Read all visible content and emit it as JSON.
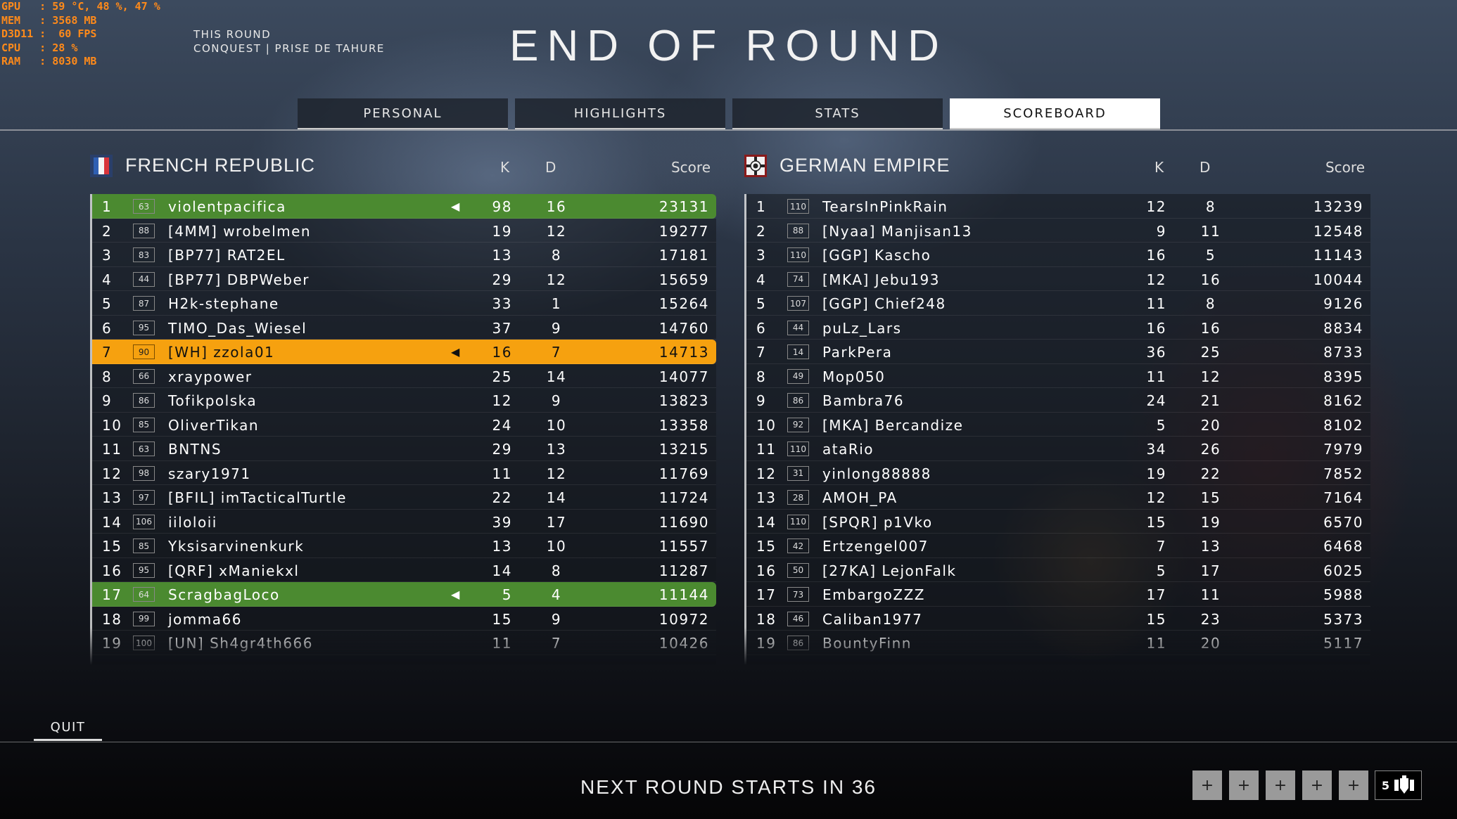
{
  "osd": {
    "lines": [
      "GPU   : 59 °C, 48 %, 47 %",
      "MEM   : 3568 MB",
      "D3D11 :  60 FPS",
      "CPU   : 28 %",
      "RAM   : 8030 MB"
    ]
  },
  "mode": {
    "round_label": "THIS ROUND",
    "subtitle": "CONQUEST | PRISE DE TAHURE"
  },
  "title": "END OF ROUND",
  "tabs": [
    {
      "label": "PERSONAL"
    },
    {
      "label": "HIGHLIGHTS"
    },
    {
      "label": "STATS"
    },
    {
      "label": "SCOREBOARD",
      "active": true
    }
  ],
  "columns": {
    "k": "K",
    "d": "D",
    "score": "Score"
  },
  "colors": {
    "highlight_green": "#4b8a30",
    "highlight_orange": "#f6a10f"
  },
  "teams": [
    {
      "name": "FRENCH REPUBLIC",
      "flag": "french-flag",
      "players": [
        {
          "rank": "1",
          "level": "63",
          "name": "violentpacifica",
          "k": "98",
          "d": "16",
          "score": "23131",
          "highlight": "green",
          "speaker": true
        },
        {
          "rank": "2",
          "level": "88",
          "name": "[4MM] wrobelmen",
          "k": "19",
          "d": "12",
          "score": "19277"
        },
        {
          "rank": "3",
          "level": "83",
          "name": "[BP77] RAT2EL",
          "k": "13",
          "d": "8",
          "score": "17181"
        },
        {
          "rank": "4",
          "level": "44",
          "name": "[BP77] DBPWeber",
          "k": "29",
          "d": "12",
          "score": "15659"
        },
        {
          "rank": "5",
          "level": "87",
          "name": "H2k-stephane",
          "k": "33",
          "d": "1",
          "score": "15264"
        },
        {
          "rank": "6",
          "level": "95",
          "name": "TIMO_Das_Wiesel",
          "k": "37",
          "d": "9",
          "score": "14760"
        },
        {
          "rank": "7",
          "level": "90",
          "name": "[WH] zzola01",
          "k": "16",
          "d": "7",
          "score": "14713",
          "highlight": "orange",
          "speaker": true
        },
        {
          "rank": "8",
          "level": "66",
          "name": "xraypower",
          "k": "25",
          "d": "14",
          "score": "14077"
        },
        {
          "rank": "9",
          "level": "86",
          "name": "Tofikpolska",
          "k": "12",
          "d": "9",
          "score": "13823"
        },
        {
          "rank": "10",
          "level": "85",
          "name": "OliverTikan",
          "k": "24",
          "d": "10",
          "score": "13358"
        },
        {
          "rank": "11",
          "level": "63",
          "name": "BNTNS",
          "k": "29",
          "d": "13",
          "score": "13215"
        },
        {
          "rank": "12",
          "level": "98",
          "name": "szary1971",
          "k": "11",
          "d": "12",
          "score": "11769"
        },
        {
          "rank": "13",
          "level": "97",
          "name": "[BFIL] imTacticalTurtle",
          "k": "22",
          "d": "14",
          "score": "11724"
        },
        {
          "rank": "14",
          "level": "106",
          "name": "iiloloii",
          "k": "39",
          "d": "17",
          "score": "11690"
        },
        {
          "rank": "15",
          "level": "85",
          "name": "Yksisarvinenkurk",
          "k": "13",
          "d": "10",
          "score": "11557"
        },
        {
          "rank": "16",
          "level": "95",
          "name": "[QRF] xManiekxl",
          "k": "14",
          "d": "8",
          "score": "11287"
        },
        {
          "rank": "17",
          "level": "64",
          "name": "ScragbagLoco",
          "k": "5",
          "d": "4",
          "score": "11144",
          "highlight": "green",
          "speaker": true
        },
        {
          "rank": "18",
          "level": "99",
          "name": "jomma66",
          "k": "15",
          "d": "9",
          "score": "10972"
        },
        {
          "rank": "19",
          "level": "100",
          "name": "[UN] Sh4gr4th666",
          "k": "11",
          "d": "7",
          "score": "10426"
        }
      ]
    },
    {
      "name": "GERMAN EMPIRE",
      "flag": "german-flag",
      "players": [
        {
          "rank": "1",
          "level": "110",
          "name": "TearsInPinkRain",
          "k": "12",
          "d": "8",
          "score": "13239"
        },
        {
          "rank": "2",
          "level": "88",
          "name": "[Nyaa] Manjisan13",
          "k": "9",
          "d": "11",
          "score": "12548"
        },
        {
          "rank": "3",
          "level": "110",
          "name": "[GGP] Kascho",
          "k": "16",
          "d": "5",
          "score": "11143"
        },
        {
          "rank": "4",
          "level": "74",
          "name": "[MKA] Jebu193",
          "k": "12",
          "d": "16",
          "score": "10044"
        },
        {
          "rank": "5",
          "level": "107",
          "name": "[GGP] Chief248",
          "k": "11",
          "d": "8",
          "score": "9126"
        },
        {
          "rank": "6",
          "level": "44",
          "name": "puLz_Lars",
          "k": "16",
          "d": "16",
          "score": "8834"
        },
        {
          "rank": "7",
          "level": "14",
          "name": "ParkPera",
          "k": "36",
          "d": "25",
          "score": "8733"
        },
        {
          "rank": "8",
          "level": "49",
          "name": "Mop050",
          "k": "11",
          "d": "12",
          "score": "8395"
        },
        {
          "rank": "9",
          "level": "86",
          "name": "Bambra76",
          "k": "24",
          "d": "21",
          "score": "8162"
        },
        {
          "rank": "10",
          "level": "92",
          "name": "[MKA] Bercandize",
          "k": "5",
          "d": "20",
          "score": "8102"
        },
        {
          "rank": "11",
          "level": "110",
          "name": "ataRio",
          "k": "34",
          "d": "26",
          "score": "7979"
        },
        {
          "rank": "12",
          "level": "31",
          "name": "yinlong88888",
          "k": "19",
          "d": "22",
          "score": "7852"
        },
        {
          "rank": "13",
          "level": "28",
          "name": "AMOH_PA",
          "k": "12",
          "d": "15",
          "score": "7164"
        },
        {
          "rank": "14",
          "level": "110",
          "name": "[SPQR] p1Vko",
          "k": "15",
          "d": "19",
          "score": "6570"
        },
        {
          "rank": "15",
          "level": "42",
          "name": "Ertzengel007",
          "k": "7",
          "d": "13",
          "score": "6468"
        },
        {
          "rank": "16",
          "level": "50",
          "name": "[27KA] LejonFalk",
          "k": "5",
          "d": "17",
          "score": "6025"
        },
        {
          "rank": "17",
          "level": "73",
          "name": "EmbargoZZZ",
          "k": "17",
          "d": "11",
          "score": "5988"
        },
        {
          "rank": "18",
          "level": "46",
          "name": "Caliban1977",
          "k": "15",
          "d": "23",
          "score": "5373"
        },
        {
          "rank": "19",
          "level": "86",
          "name": "BountyFinn",
          "k": "11",
          "d": "20",
          "score": "5117"
        }
      ]
    }
  ],
  "footer": {
    "quit": "QUIT",
    "next_round": "NEXT ROUND STARTS IN 36",
    "slot_icon": "+",
    "squad_count": "5",
    "squad_icon": "squad-icon"
  }
}
